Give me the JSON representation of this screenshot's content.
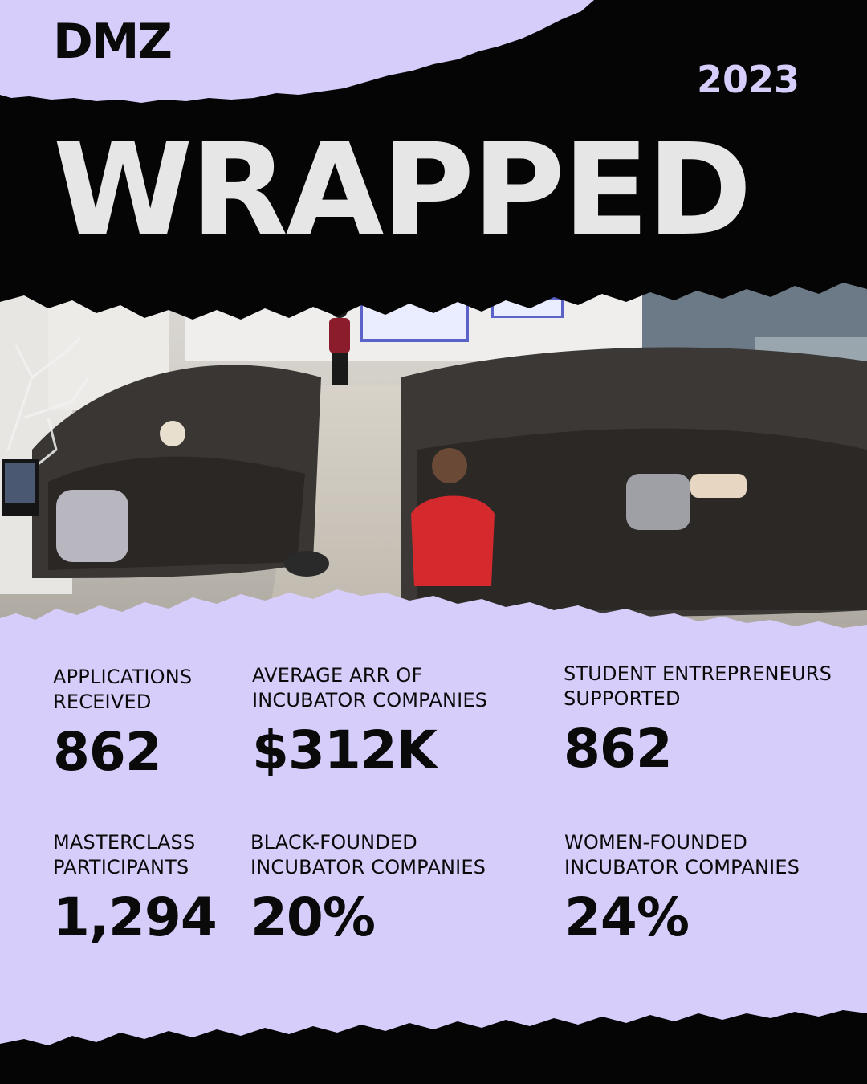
{
  "brand": {
    "logo": "DMZ",
    "accent": "#d6cdfb",
    "dark": "#0a0a0a"
  },
  "header": {
    "year": "2023",
    "title": "WRAPPED"
  },
  "photo": {
    "description_icon": "event-audience-photo"
  },
  "stats": [
    {
      "label": "APPLICATIONS\nRECEIVED",
      "value": "862"
    },
    {
      "label": "AVERAGE ARR OF\nINCUBATOR COMPANIES",
      "value": "$312K"
    },
    {
      "label": "STUDENT ENTREPRENEURS\nSUPPORTED",
      "value": "862"
    },
    {
      "label": "MASTERCLASS\nPARTICIPANTS",
      "value": "1,294"
    },
    {
      "label": "BLACK-FOUNDED\nINCUBATOR COMPANIES",
      "value": "20%"
    },
    {
      "label": "WOMEN-FOUNDED\nINCUBATOR COMPANIES",
      "value": "24%"
    }
  ]
}
